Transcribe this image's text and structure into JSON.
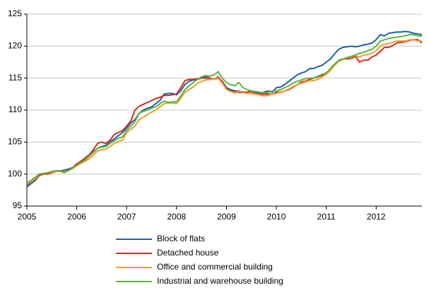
{
  "chart_data": {
    "type": "line",
    "x": [
      2005,
      2005.083,
      2005.167,
      2005.25,
      2005.333,
      2005.417,
      2005.5,
      2005.583,
      2005.667,
      2005.75,
      2005.833,
      2005.917,
      2006,
      2006.083,
      2006.167,
      2006.25,
      2006.333,
      2006.417,
      2006.5,
      2006.583,
      2006.667,
      2006.75,
      2006.833,
      2006.917,
      2007,
      2007.083,
      2007.167,
      2007.25,
      2007.333,
      2007.417,
      2007.5,
      2007.583,
      2007.667,
      2007.75,
      2007.833,
      2007.917,
      2008,
      2008.083,
      2008.167,
      2008.25,
      2008.333,
      2008.417,
      2008.5,
      2008.583,
      2008.667,
      2008.75,
      2008.833,
      2008.917,
      2009,
      2009.083,
      2009.167,
      2009.25,
      2009.333,
      2009.417,
      2009.5,
      2009.583,
      2009.667,
      2009.75,
      2009.833,
      2009.917,
      2010,
      2010.083,
      2010.167,
      2010.25,
      2010.333,
      2010.417,
      2010.5,
      2010.583,
      2010.667,
      2010.75,
      2010.833,
      2010.917,
      2011,
      2011.083,
      2011.167,
      2011.25,
      2011.333,
      2011.417,
      2011.5,
      2011.583,
      2011.667,
      2011.75,
      2011.833,
      2011.917,
      2012,
      2012.083,
      2012.167,
      2012.25,
      2012.333,
      2012.417,
      2012.5,
      2012.583,
      2012.667,
      2012.75,
      2012.833,
      2012.917
    ],
    "series": [
      {
        "name": "Block of flats",
        "color": "#1f5fa6",
        "values": [
          98.0,
          98.5,
          99.0,
          99.8,
          100.0,
          100.2,
          100.4,
          100.5,
          100.5,
          100.6,
          100.8,
          101.0,
          101.5,
          102.0,
          102.5,
          103.0,
          103.5,
          104.0,
          104.3,
          104.5,
          105.0,
          105.5,
          106.0,
          106.5,
          107.2,
          108.0,
          108.5,
          109.5,
          110.0,
          110.3,
          110.5,
          111.0,
          111.5,
          112.5,
          112.6,
          112.6,
          112.4,
          113.0,
          114.0,
          114.5,
          114.7,
          114.8,
          115.0,
          115.2,
          115.0,
          114.8,
          115.0,
          114.5,
          113.5,
          113.2,
          113.0,
          113.0,
          112.8,
          112.8,
          113.0,
          112.8,
          112.6,
          112.8,
          113.0,
          112.8,
          113.5,
          113.6,
          114.0,
          114.5,
          115.0,
          115.5,
          115.8,
          116.0,
          116.5,
          116.5,
          116.8,
          117.0,
          117.5,
          118.0,
          118.8,
          119.5,
          119.8,
          119.9,
          120.0,
          119.9,
          120.0,
          120.2,
          120.3,
          120.5,
          121.0,
          121.8,
          121.6,
          122.0,
          122.1,
          122.2,
          122.2,
          122.3,
          122.2,
          122.0,
          121.9,
          121.8
        ]
      },
      {
        "name": "Detached house",
        "color": "#d42a20",
        "values": [
          98.3,
          98.8,
          99.2,
          99.8,
          100.0,
          100.0,
          100.2,
          100.4,
          100.5,
          100.3,
          100.6,
          101.0,
          101.6,
          102.0,
          102.5,
          103.0,
          103.8,
          104.8,
          105.0,
          104.8,
          105.3,
          106.2,
          106.5,
          106.8,
          107.5,
          108.3,
          110.0,
          110.6,
          110.9,
          111.2,
          111.5,
          111.8,
          112.0,
          112.3,
          112.3,
          112.4,
          112.5,
          113.5,
          114.6,
          114.8,
          114.8,
          114.9,
          115.0,
          115.0,
          115.0,
          114.8,
          115.2,
          114.4,
          113.3,
          113.0,
          112.8,
          112.8,
          112.7,
          112.8,
          112.9,
          112.6,
          112.4,
          112.5,
          112.5,
          112.5,
          112.8,
          112.8,
          113.0,
          113.2,
          113.6,
          114.0,
          114.4,
          114.5,
          114.8,
          115.0,
          115.2,
          115.4,
          115.8,
          116.3,
          117.0,
          117.8,
          118.0,
          118.0,
          118.1,
          118.4,
          117.5,
          117.8,
          117.8,
          118.3,
          118.6,
          119.2,
          119.8,
          119.8,
          120.1,
          120.5,
          120.6,
          120.7,
          120.9,
          121.0,
          121.0,
          120.5
        ]
      },
      {
        "name": "Office and commercial building",
        "color": "#f39c34",
        "values": [
          98.5,
          98.8,
          99.3,
          100.0,
          100.1,
          100.2,
          100.3,
          100.4,
          100.4,
          100.3,
          100.5,
          100.9,
          101.3,
          101.7,
          102.0,
          102.4,
          103.0,
          103.6,
          103.8,
          103.9,
          104.3,
          104.8,
          105.1,
          105.3,
          106.5,
          107.0,
          107.5,
          108.5,
          108.9,
          109.3,
          109.7,
          110.0,
          110.5,
          111.0,
          111.1,
          111.1,
          111.0,
          111.8,
          112.8,
          113.2,
          113.6,
          114.2,
          114.5,
          114.7,
          114.8,
          114.8,
          115.0,
          114.2,
          113.2,
          112.9,
          112.7,
          113.0,
          112.7,
          112.6,
          112.6,
          112.5,
          112.4,
          112.2,
          112.3,
          112.5,
          112.6,
          112.8,
          113.0,
          113.3,
          113.7,
          114.0,
          114.2,
          114.4,
          114.6,
          114.6,
          114.8,
          115.2,
          115.6,
          116.2,
          117.0,
          117.6,
          117.9,
          118.2,
          118.4,
          118.5,
          118.3,
          118.6,
          118.7,
          118.9,
          119.3,
          120.0,
          120.3,
          120.4,
          120.6,
          120.8,
          120.8,
          120.8,
          121.0,
          121.0,
          120.8,
          120.8
        ]
      },
      {
        "name": "Industrial and warehouse  building",
        "color": "#5bb53a",
        "values": [
          98.6,
          99.0,
          99.5,
          100.0,
          100.1,
          100.2,
          100.4,
          100.5,
          100.5,
          100.2,
          100.6,
          100.9,
          101.4,
          101.8,
          102.2,
          102.8,
          103.4,
          104.0,
          104.2,
          104.3,
          104.8,
          105.2,
          105.6,
          105.8,
          106.8,
          107.5,
          108.2,
          109.5,
          109.8,
          110.0,
          110.3,
          110.5,
          111.0,
          111.4,
          111.2,
          111.3,
          111.3,
          112.2,
          113.2,
          113.8,
          114.3,
          114.8,
          115.2,
          115.4,
          115.3,
          115.5,
          116.0,
          115.0,
          114.3,
          114.0,
          113.8,
          114.3,
          113.5,
          113.2,
          113.0,
          112.9,
          112.8,
          112.7,
          112.7,
          113.0,
          113.0,
          113.2,
          113.5,
          113.8,
          114.2,
          114.5,
          114.7,
          114.9,
          115.0,
          115.0,
          115.3,
          115.6,
          115.8,
          116.5,
          117.2,
          117.8,
          118.0,
          118.2,
          118.4,
          118.6,
          118.9,
          119.0,
          119.3,
          119.5,
          120.0,
          120.8,
          121.0,
          121.2,
          121.3,
          121.4,
          121.5,
          121.6,
          121.8,
          121.8,
          121.6,
          121.6
        ]
      }
    ],
    "xlim": [
      2005,
      2012.917
    ],
    "xticks": [
      2005,
      2006,
      2007,
      2008,
      2009,
      2010,
      2011,
      2012
    ],
    "ylim": [
      95,
      125
    ],
    "yticks": [
      95,
      100,
      105,
      110,
      115,
      120,
      125
    ],
    "grid": true,
    "legend": "bottom"
  }
}
